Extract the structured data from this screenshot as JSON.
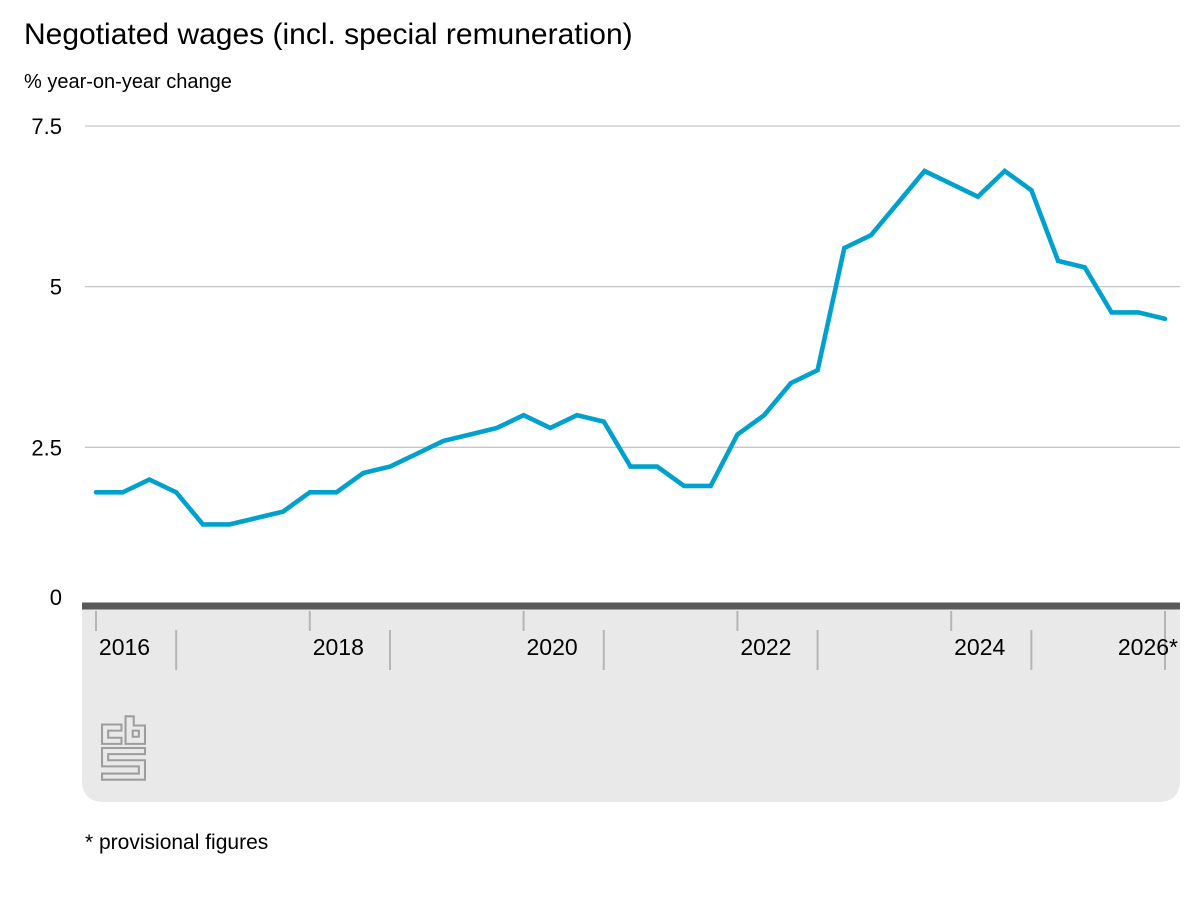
{
  "header": {
    "title": "Negotiated wages (incl. special remuneration)",
    "subtitle": "% year-on-year change"
  },
  "footnote": "* provisional figures",
  "branding": {
    "logo": "cbs-logo",
    "logo_color": "#9d9d9d"
  },
  "chart_data": {
    "type": "line",
    "title": "Negotiated wages (incl. special remuneration)",
    "ylabel": "% year-on-year change",
    "xlabel": "",
    "ylim": [
      0,
      7.5
    ],
    "grid": true,
    "legend": "none",
    "frequency": "quarterly",
    "series": [
      {
        "name": "Negotiated wages (incl. special remuneration)",
        "x": [
          2016,
          2016.25,
          2016.5,
          2016.75,
          2017,
          2017.25,
          2017.5,
          2017.75,
          2018,
          2018.25,
          2018.5,
          2018.75,
          2019,
          2019.25,
          2019.5,
          2019.75,
          2020,
          2020.25,
          2020.5,
          2020.75,
          2021,
          2021.25,
          2021.5,
          2021.75,
          2022,
          2022.25,
          2022.5,
          2022.75,
          2023,
          2023.25,
          2023.5,
          2023.75,
          2024,
          2024.25,
          2024.5,
          2024.75,
          2025,
          2025.25,
          2025.5,
          2025.75,
          2026
        ],
        "values": [
          1.8,
          1.8,
          2.0,
          1.8,
          1.3,
          1.3,
          1.4,
          1.5,
          1.8,
          1.8,
          2.1,
          2.2,
          2.4,
          2.6,
          2.7,
          2.8,
          3.0,
          2.8,
          3.0,
          2.9,
          2.2,
          2.2,
          1.9,
          1.9,
          2.7,
          3.0,
          3.5,
          3.7,
          5.6,
          5.8,
          6.3,
          6.8,
          6.6,
          6.4,
          6.8,
          6.5,
          5.4,
          5.3,
          4.6,
          4.6,
          4.5
        ]
      }
    ],
    "yticks": [
      {
        "v": 0,
        "label": "0"
      },
      {
        "v": 2.5,
        "label": "2.5"
      },
      {
        "v": 5,
        "label": "5"
      },
      {
        "v": 7.5,
        "label": "7.5"
      }
    ],
    "xticks": [
      {
        "year": 2016,
        "label": "2016"
      },
      {
        "year": 2018,
        "label": "2018"
      },
      {
        "year": 2020,
        "label": "2020"
      },
      {
        "year": 2022,
        "label": "2022"
      },
      {
        "year": 2024,
        "label": "2024"
      },
      {
        "year": 2026,
        "label": "2026*"
      }
    ],
    "colors": {
      "line": "#00a1cd",
      "gridline": "#c6c6c6",
      "zero_axis": "#58595b",
      "axis_band": "#e9e9e9",
      "tick": "#b5b5b5",
      "text": "#000000"
    }
  }
}
